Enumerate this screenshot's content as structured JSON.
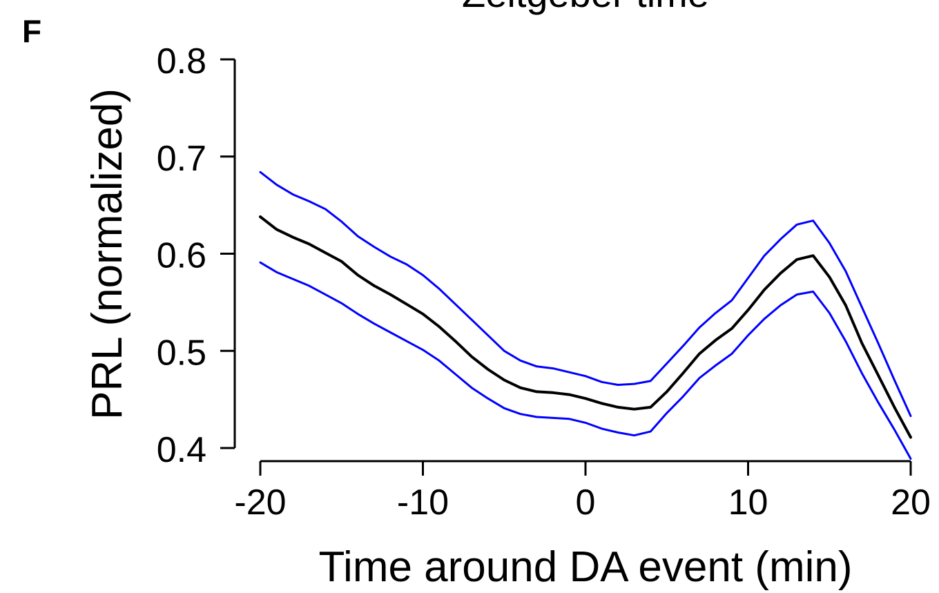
{
  "figure": {
    "panel_letter": "F",
    "top_cut_text": "Zeitgeber time"
  },
  "chart_data": {
    "type": "line",
    "title": "",
    "xlabel": "Time around DA event (min)",
    "ylabel": "PRL (normalized)",
    "xlim": [
      -20,
      20
    ],
    "ylim": [
      0.4,
      0.8
    ],
    "xticks": [
      -20,
      -10,
      0,
      10,
      20
    ],
    "xtick_labels": [
      "-20",
      "-10",
      "0",
      "10",
      "20"
    ],
    "yticks": [
      0.4,
      0.5,
      0.6,
      0.7,
      0.8
    ],
    "ytick_labels": [
      "0.4",
      "0.5",
      "0.6",
      "0.7",
      "0.8"
    ],
    "grid": false,
    "legend": "none",
    "colors": {
      "mean": "#000000",
      "bounds": "#0000ff"
    },
    "x": [
      -20,
      -19,
      -18,
      -17,
      -16,
      -15,
      -14,
      -13,
      -12,
      -11,
      -10,
      -9,
      -8,
      -7,
      -6,
      -5,
      -4,
      -3,
      -2,
      -1,
      0,
      1,
      2,
      3,
      4,
      5,
      6,
      7,
      8,
      9,
      10,
      11,
      12,
      13,
      14,
      15,
      16,
      17,
      18,
      19,
      20
    ],
    "series": [
      {
        "role": "upper",
        "color": "#0000ff",
        "values": [
          0.684,
          0.671,
          0.661,
          0.654,
          0.646,
          0.633,
          0.618,
          0.607,
          0.597,
          0.589,
          0.578,
          0.564,
          0.548,
          0.532,
          0.516,
          0.5,
          0.49,
          0.484,
          0.482,
          0.478,
          0.474,
          0.468,
          0.465,
          0.466,
          0.469,
          0.487,
          0.505,
          0.524,
          0.539,
          0.552,
          0.575,
          0.598,
          0.615,
          0.63,
          0.634,
          0.611,
          0.582,
          0.545,
          0.508,
          0.47,
          0.433
        ]
      },
      {
        "role": "mean",
        "color": "#000000",
        "values": [
          0.638,
          0.625,
          0.617,
          0.61,
          0.601,
          0.592,
          0.578,
          0.567,
          0.558,
          0.548,
          0.538,
          0.525,
          0.51,
          0.494,
          0.481,
          0.47,
          0.462,
          0.458,
          0.457,
          0.455,
          0.451,
          0.446,
          0.442,
          0.44,
          0.442,
          0.458,
          0.477,
          0.497,
          0.511,
          0.523,
          0.542,
          0.563,
          0.58,
          0.594,
          0.598,
          0.576,
          0.547,
          0.508,
          0.475,
          0.442,
          0.411
        ]
      },
      {
        "role": "lower",
        "color": "#0000ff",
        "values": [
          0.591,
          0.581,
          0.574,
          0.567,
          0.558,
          0.549,
          0.538,
          0.528,
          0.519,
          0.51,
          0.501,
          0.49,
          0.476,
          0.462,
          0.451,
          0.441,
          0.435,
          0.432,
          0.431,
          0.43,
          0.426,
          0.42,
          0.416,
          0.413,
          0.417,
          0.436,
          0.453,
          0.472,
          0.485,
          0.497,
          0.516,
          0.533,
          0.547,
          0.558,
          0.561,
          0.539,
          0.51,
          0.477,
          0.447,
          0.419,
          0.389
        ]
      }
    ]
  }
}
